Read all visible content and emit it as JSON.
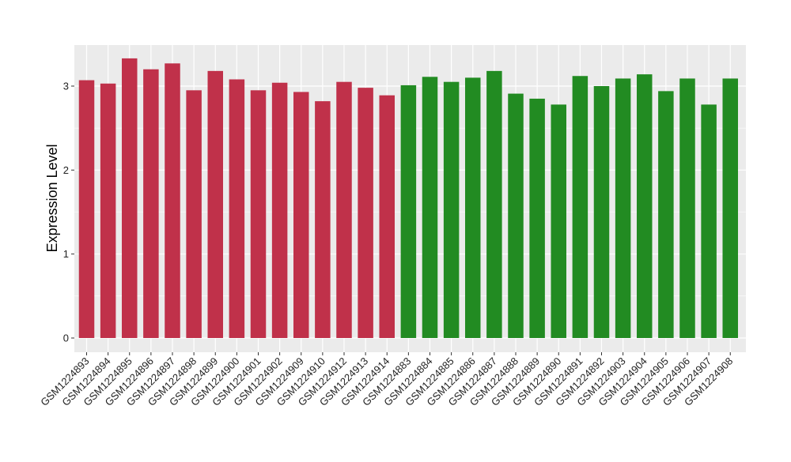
{
  "chart_data": {
    "type": "bar",
    "title": "",
    "xlabel": "",
    "ylabel": "Expression Level",
    "ylim": [
      0,
      3.5
    ],
    "yticks": [
      0,
      1,
      2,
      3
    ],
    "grid": true,
    "legend": "none",
    "colors": {
      "group_red": "#c0314a",
      "group_green": "#228b22",
      "panel_background": "#ebebeb",
      "grid_line": "#ffffff"
    },
    "categories": [
      "GSM1224893",
      "GSM1224894",
      "GSM1224895",
      "GSM1224896",
      "GSM1224897",
      "GSM1224898",
      "GSM1224899",
      "GSM1224900",
      "GSM1224901",
      "GSM1224902",
      "GSM1224909",
      "GSM1224910",
      "GSM1224912",
      "GSM1224913",
      "GSM1224914",
      "GSM1224883",
      "GSM1224884",
      "GSM1224885",
      "GSM1224886",
      "GSM1224887",
      "GSM1224888",
      "GSM1224889",
      "GSM1224890",
      "GSM1224891",
      "GSM1224892",
      "GSM1224903",
      "GSM1224904",
      "GSM1224905",
      "GSM1224906",
      "GSM1224907",
      "GSM1224908"
    ],
    "values": [
      3.07,
      3.03,
      3.33,
      3.2,
      3.27,
      2.95,
      3.18,
      3.08,
      2.95,
      3.04,
      2.93,
      2.82,
      3.05,
      2.98,
      2.89,
      3.01,
      3.11,
      3.05,
      3.1,
      3.18,
      2.91,
      2.85,
      2.78,
      3.12,
      3.0,
      3.09,
      3.14,
      2.94,
      3.09,
      2.78,
      3.09
    ],
    "bar_groups": [
      "red",
      "red",
      "red",
      "red",
      "red",
      "red",
      "red",
      "red",
      "red",
      "red",
      "red",
      "red",
      "red",
      "red",
      "red",
      "green",
      "green",
      "green",
      "green",
      "green",
      "green",
      "green",
      "green",
      "green",
      "green",
      "green",
      "green",
      "green",
      "green",
      "green",
      "green"
    ]
  }
}
